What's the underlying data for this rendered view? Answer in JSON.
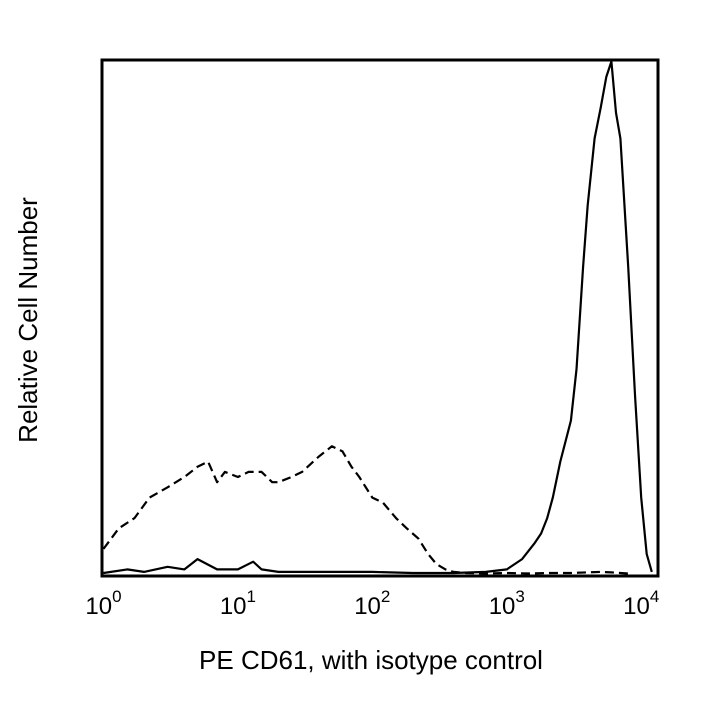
{
  "chart_data": {
    "type": "line",
    "title": "",
    "xlabel": "PE CD61, with isotype control",
    "ylabel": "Relative Cell Number",
    "xscale": "log10",
    "xlim": [
      1,
      13000
    ],
    "ylim": [
      0,
      100
    ],
    "grid": false,
    "legend": "none",
    "x_ticks": [
      {
        "base": "10",
        "exp": "0",
        "value": 1
      },
      {
        "base": "10",
        "exp": "1",
        "value": 10
      },
      {
        "base": "10",
        "exp": "2",
        "value": 100
      },
      {
        "base": "10",
        "exp": "3",
        "value": 1000
      },
      {
        "base": "10",
        "exp": "4",
        "value": 10000
      }
    ],
    "series": [
      {
        "name": "isotype control",
        "style": "dashed",
        "color": "#000000",
        "x": [
          1,
          1.3,
          1.7,
          2.2,
          3,
          4,
          5,
          6,
          7,
          8,
          10,
          12,
          15,
          18,
          20,
          25,
          30,
          40,
          50,
          60,
          70,
          80,
          100,
          120,
          150,
          180,
          220,
          260,
          300,
          350,
          400,
          500,
          700,
          1000,
          1500,
          2000,
          3000,
          4000,
          5000,
          6000,
          7000,
          8000
        ],
        "y": [
          5,
          9,
          11,
          15,
          17,
          19,
          21,
          22,
          18,
          20,
          19,
          20,
          20,
          18,
          18,
          19,
          20,
          23,
          25,
          24,
          21,
          19,
          15,
          14,
          11,
          9,
          7,
          4,
          2,
          1,
          0.5,
          0.3,
          0.2,
          0.3,
          0.2,
          0.3,
          0.3,
          0.4,
          0.5,
          0.4,
          0.3,
          0.2
        ]
      },
      {
        "name": "PE CD61",
        "style": "solid",
        "color": "#000000",
        "x": [
          1,
          1.5,
          2,
          3,
          4,
          5,
          7,
          10,
          13,
          15,
          20,
          30,
          50,
          100,
          200,
          400,
          700,
          1000,
          1300,
          1600,
          1800,
          2000,
          2200,
          2500,
          3000,
          3300,
          3700,
          4000,
          4500,
          5000,
          5500,
          6000,
          6500,
          7000,
          8000,
          9000,
          10000,
          11000,
          12000
        ],
        "y": [
          0.3,
          1,
          0.5,
          1.5,
          1,
          3,
          1,
          1,
          2.5,
          1,
          0.5,
          0.5,
          0.5,
          0.5,
          0.3,
          0.3,
          0.5,
          1,
          3,
          6,
          8,
          11,
          15,
          22,
          30,
          40,
          60,
          72,
          85,
          91,
          97,
          100,
          90,
          85,
          60,
          35,
          15,
          4,
          0.5
        ]
      }
    ]
  }
}
